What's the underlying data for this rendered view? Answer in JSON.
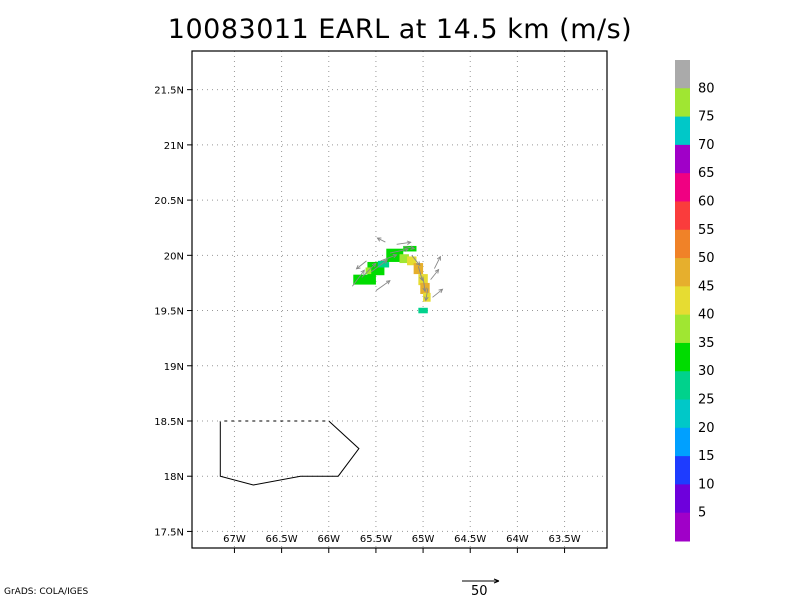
{
  "title": "10083011 EARL at 14.5 km (m/s)",
  "credit": "GrADS: COLA/IGES",
  "vector_reference": {
    "label": "50"
  },
  "axes": {
    "lat_ticks": [
      "21.5N",
      "21N",
      "20.5N",
      "20N",
      "19.5N",
      "19N",
      "18.5N",
      "18N",
      "17.5N"
    ],
    "lon_ticks": [
      "67W",
      "66.5W",
      "66W",
      "65.5W",
      "65W",
      "64.5W",
      "64W",
      "63.5W"
    ],
    "lat_range": [
      17.35,
      21.85
    ],
    "lon_range": [
      -67.45,
      -63.05
    ]
  },
  "colorbar": {
    "labels": [
      "80",
      "75",
      "70",
      "65",
      "60",
      "55",
      "50",
      "45",
      "40",
      "35",
      "30",
      "25",
      "20",
      "15",
      "10",
      "5"
    ],
    "colors": [
      "#aaaaaa",
      "#a0e632",
      "#00c8c8",
      "#a000c8",
      "#f00082",
      "#fa3c3c",
      "#f08228",
      "#e6af2d",
      "#e6dc32",
      "#a0e632",
      "#00dc00",
      "#00d28c",
      "#00c8c8",
      "#00a0ff",
      "#1e3cff",
      "#6e00dc",
      "#a000c8"
    ]
  },
  "wind_cells": [
    {
      "lon": -65.62,
      "lat": 19.78,
      "w": 0.24,
      "h": 0.09,
      "color": "#00dc00"
    },
    {
      "lon": -65.5,
      "lat": 19.88,
      "w": 0.18,
      "h": 0.12,
      "color": "#00dc00"
    },
    {
      "lon": -65.42,
      "lat": 19.92,
      "w": 0.12,
      "h": 0.06,
      "color": "#00d28c"
    },
    {
      "lon": -65.3,
      "lat": 20.0,
      "w": 0.18,
      "h": 0.12,
      "color": "#00dc00"
    },
    {
      "lon": -65.14,
      "lat": 20.06,
      "w": 0.14,
      "h": 0.05,
      "color": "#00dc00"
    },
    {
      "lon": -65.2,
      "lat": 19.97,
      "w": 0.1,
      "h": 0.08,
      "color": "#a0e632"
    },
    {
      "lon": -65.12,
      "lat": 19.95,
      "w": 0.1,
      "h": 0.08,
      "color": "#e6dc32"
    },
    {
      "lon": -65.05,
      "lat": 19.88,
      "w": 0.1,
      "h": 0.1,
      "color": "#e6af2d"
    },
    {
      "lon": -65.0,
      "lat": 19.78,
      "w": 0.1,
      "h": 0.1,
      "color": "#e6dc32"
    },
    {
      "lon": -64.98,
      "lat": 19.7,
      "w": 0.1,
      "h": 0.1,
      "color": "#e6af2d"
    },
    {
      "lon": -64.96,
      "lat": 19.62,
      "w": 0.08,
      "h": 0.08,
      "color": "#e6dc32"
    },
    {
      "lon": -65.0,
      "lat": 19.5,
      "w": 0.1,
      "h": 0.05,
      "color": "#00d28c"
    },
    {
      "lon": -65.58,
      "lat": 19.86,
      "w": 0.06,
      "h": 0.06,
      "color": "#a0e632"
    }
  ],
  "wind_vectors": [
    {
      "lon": -65.75,
      "lat": 19.72,
      "u": 12,
      "v": 16
    },
    {
      "lon": -65.65,
      "lat": 19.8,
      "u": 14,
      "v": 14
    },
    {
      "lon": -65.55,
      "lat": 19.85,
      "u": 16,
      "v": 12
    },
    {
      "lon": -65.5,
      "lat": 19.68,
      "u": 14,
      "v": 10
    },
    {
      "lon": -65.45,
      "lat": 19.95,
      "u": 16,
      "v": 6
    },
    {
      "lon": -65.35,
      "lat": 20.02,
      "u": 18,
      "v": 4
    },
    {
      "lon": -65.28,
      "lat": 20.1,
      "u": 14,
      "v": 2
    },
    {
      "lon": -65.2,
      "lat": 20.08,
      "u": 10,
      "v": -2
    },
    {
      "lon": -65.12,
      "lat": 20.0,
      "u": 8,
      "v": -10
    },
    {
      "lon": -65.05,
      "lat": 19.9,
      "u": 4,
      "v": -14
    },
    {
      "lon": -65.0,
      "lat": 19.8,
      "u": 2,
      "v": -14
    },
    {
      "lon": -64.95,
      "lat": 19.7,
      "u": -2,
      "v": -12
    },
    {
      "lon": -64.92,
      "lat": 19.78,
      "u": 8,
      "v": 10
    },
    {
      "lon": -64.88,
      "lat": 19.88,
      "u": 6,
      "v": 12
    },
    {
      "lon": -64.9,
      "lat": 19.62,
      "u": 10,
      "v": 8
    },
    {
      "lon": -65.4,
      "lat": 20.12,
      "u": -8,
      "v": 4
    },
    {
      "lon": -65.6,
      "lat": 19.95,
      "u": -10,
      "v": -8
    }
  ],
  "coastline": [
    [
      -67.15,
      18.5
    ],
    [
      -66.0,
      18.5
    ],
    [
      -65.68,
      18.25
    ],
    [
      -65.9,
      18.0
    ],
    [
      -66.3,
      18.0
    ],
    [
      -66.8,
      17.92
    ],
    [
      -67.15,
      18.0
    ],
    [
      -67.15,
      18.5
    ]
  ]
}
